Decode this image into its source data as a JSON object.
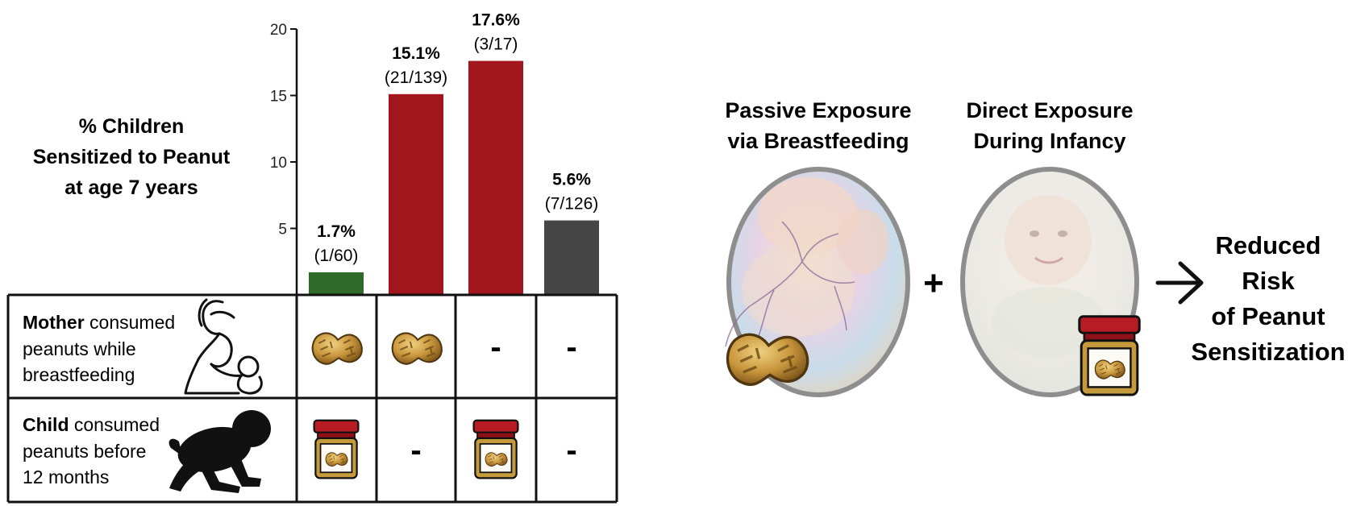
{
  "chart_data": {
    "type": "bar",
    "ylabel": [
      "% Children",
      "Sensitized to Peanut",
      "at age 7 years"
    ],
    "yticks": [
      5,
      10,
      15,
      20
    ],
    "ylim": [
      0,
      20
    ],
    "values": [
      1.7,
      15.1,
      17.6,
      5.6
    ],
    "pct_labels": [
      "1.7%",
      "15.1%",
      "17.6%",
      "5.6%"
    ],
    "count_labels": [
      "(1/60)",
      "(21/139)",
      "(3/17)",
      "(7/126)"
    ],
    "colors": [
      "#2e6b29",
      "#a3161d",
      "#a3161d",
      "#454545"
    ],
    "grid": false
  },
  "table": {
    "rows": [
      {
        "label_bold": "Mother",
        "label_rest": " consumed",
        "label_lines": [
          "peanuts while",
          "breastfeeding"
        ],
        "icon": "breastfeeding-mother-icon",
        "cells": [
          "peanut",
          "peanut",
          "-",
          "-"
        ]
      },
      {
        "label_bold": "Child",
        "label_rest": " consumed",
        "label_lines": [
          "peanuts before",
          "12 months"
        ],
        "icon": "crawling-baby-icon",
        "cells": [
          "jar",
          "-",
          "jar",
          "-"
        ]
      }
    ]
  },
  "right_panel": {
    "passive_title": [
      "Passive Exposure",
      "via Breastfeeding"
    ],
    "direct_title": [
      "Direct Exposure",
      "During Infancy"
    ],
    "plus": "+",
    "arrow": "→",
    "outcome": [
      "Reduced",
      "Risk",
      "of Peanut",
      "Sensitization"
    ]
  }
}
